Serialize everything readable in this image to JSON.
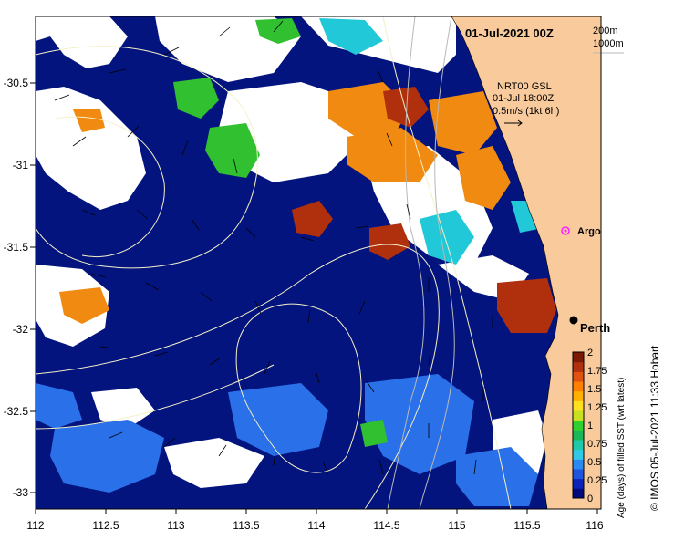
{
  "map": {
    "title": "01-Jul-2021 00Z",
    "isobath_labels": [
      "200m",
      "1000m"
    ],
    "current_source": "NRT00 GSL",
    "current_time": "01-Jul 18:00Z",
    "scale_label": "0.5m/s (1kt 6h)",
    "places": [
      {
        "name": "Argo",
        "lon": 115.78,
        "lat": -31.45,
        "marker": "magenta-diamond"
      },
      {
        "name": "Perth",
        "lon": 115.86,
        "lat": -31.95,
        "marker": "black-dot"
      }
    ],
    "x_ticks": [
      "112",
      "112.5",
      "113",
      "113.5",
      "114",
      "114.5",
      "115",
      "115.5",
      "116"
    ],
    "y_ticks": [
      "-30.5",
      "-31",
      "-31.5",
      "-32",
      "-32.5",
      "-33"
    ],
    "extent": {
      "lon": [
        112,
        116
      ],
      "lat": [
        -33.1,
        -30.1
      ]
    }
  },
  "colorbar": {
    "title": "Age (days) of filled SST (wrt latest)",
    "ticks": [
      "0",
      "0.25",
      "0.5",
      "0.75",
      "1",
      "1.25",
      "1.5",
      "1.75",
      "2"
    ],
    "colors": [
      "#000a7a",
      "#0d22b8",
      "#1e55dc",
      "#2a8af0",
      "#30c8e6",
      "#1fc8a8",
      "#18b85a",
      "#30d030",
      "#c8e020",
      "#ffe020",
      "#ffb000",
      "#ff8000",
      "#e05010",
      "#b03010",
      "#7a1a05"
    ]
  },
  "colors": {
    "land": "#f9cb9c",
    "ocean_deep": "#04147e",
    "cloud": "#ffffff",
    "contour": "#f4f0c8"
  },
  "credit": "© IMOS 05-Jul-2021 11:33 Hobart"
}
